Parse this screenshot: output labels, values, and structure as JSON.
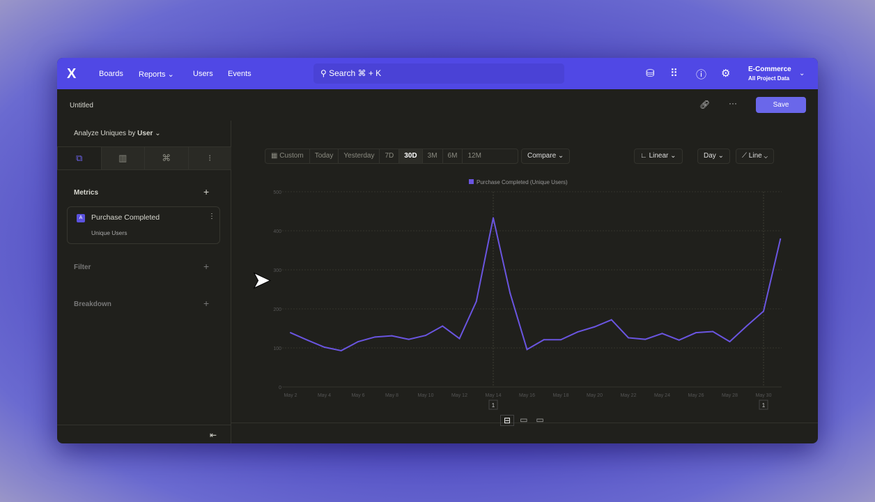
{
  "nav": {
    "logo": "X",
    "boards": "Boards",
    "reports": "Reports",
    "users": "Users",
    "events": "Events",
    "search": "Search ⌘ + K",
    "project": "E-Commerce",
    "project_sub": "All Project Data"
  },
  "toolbar": {
    "title": "Untitled",
    "save": "Save"
  },
  "sidebar": {
    "analyze": "Analyze Uniques by",
    "analyze_by": "User",
    "metrics": "Metrics",
    "metric_letter": "A",
    "metric_name": "Purchase Completed",
    "metric_sub": "Unique Users",
    "filter": "Filter",
    "breakdown": "Breakdown"
  },
  "controls": {
    "custom": "Custom",
    "ranges": [
      "Today",
      "Yesterday",
      "7D",
      "30D",
      "3M",
      "6M",
      "12M"
    ],
    "selected": "30D",
    "compare": "Compare",
    "scale": "Linear",
    "interval": "Day",
    "chart_type": "Line"
  },
  "chart_data": {
    "type": "line",
    "legend": "Purchase Completed (Unique Users)",
    "legend_position": "top",
    "color": "#6a55e0",
    "ylim": [
      0,
      500
    ],
    "yticks": [
      0,
      100,
      200,
      300,
      400,
      500
    ],
    "xtick_labels": [
      "May 2",
      "May 4",
      "May 6",
      "May 8",
      "May 10",
      "May 12",
      "May 14",
      "May 16",
      "May 18",
      "May 20",
      "May 22",
      "May 24",
      "May 26",
      "May 28",
      "May 30"
    ],
    "x": [
      "May 2",
      "May 3",
      "May 4",
      "May 5",
      "May 6",
      "May 7",
      "May 8",
      "May 9",
      "May 10",
      "May 11",
      "May 12",
      "May 13",
      "May 14",
      "May 15",
      "May 16",
      "May 17",
      "May 18",
      "May 19",
      "May 20",
      "May 21",
      "May 22",
      "May 23",
      "May 24",
      "May 25",
      "May 26",
      "May 27",
      "May 28",
      "May 29",
      "May 30",
      "May 31"
    ],
    "values": [
      139,
      120,
      102,
      93,
      116,
      128,
      131,
      122,
      132,
      156,
      124,
      219,
      433,
      240,
      96,
      121,
      121,
      141,
      154,
      172,
      126,
      122,
      137,
      120,
      139,
      142,
      116,
      156,
      194,
      379
    ],
    "annotations": [
      {
        "x": "May 14",
        "label": "1"
      },
      {
        "x": "May 30",
        "label": "1"
      }
    ]
  }
}
